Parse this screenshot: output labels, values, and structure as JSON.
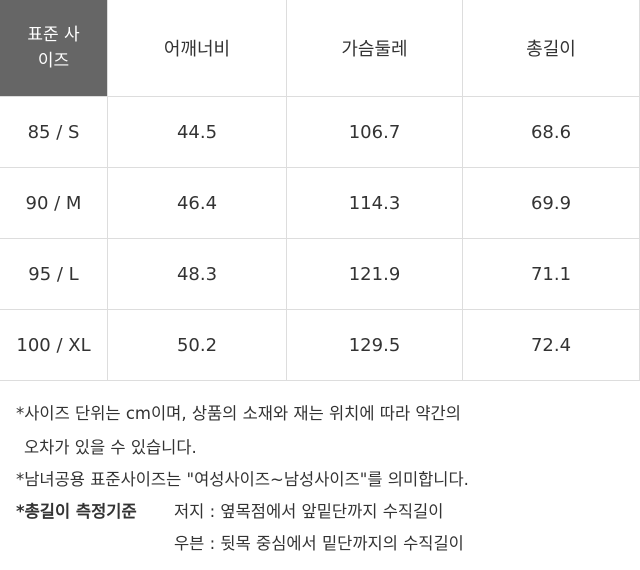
{
  "table": {
    "header": [
      "표준 사이즈",
      "어깨너비",
      "가슴둘레",
      "총길이"
    ],
    "rows": [
      [
        "85 / S",
        "44.5",
        "106.7",
        "68.6"
      ],
      [
        "90 / M",
        "46.4",
        "114.3",
        "69.9"
      ],
      [
        "95 / L",
        "48.3",
        "121.9",
        "71.1"
      ],
      [
        "100 / XL",
        "50.2",
        "129.5",
        "72.4"
      ]
    ]
  },
  "notes": {
    "lines": [
      "*사이즈 단위는 cm이며, 상품의 소재와 재는 위치에 따라 약간의",
      "오차가 있을 수 있습니다.",
      "*남녀공용 표준사이즈는 \"여성사이즈~남성사이즈\"를 의미합니다."
    ],
    "measure": {
      "title": "*총길이 측정기준",
      "items": [
        "저지 : 옆목점에서 앞밑단까지 수직길이",
        "우븐 : 뒷목 중심에서 밑단까지의 수직길이"
      ]
    }
  }
}
